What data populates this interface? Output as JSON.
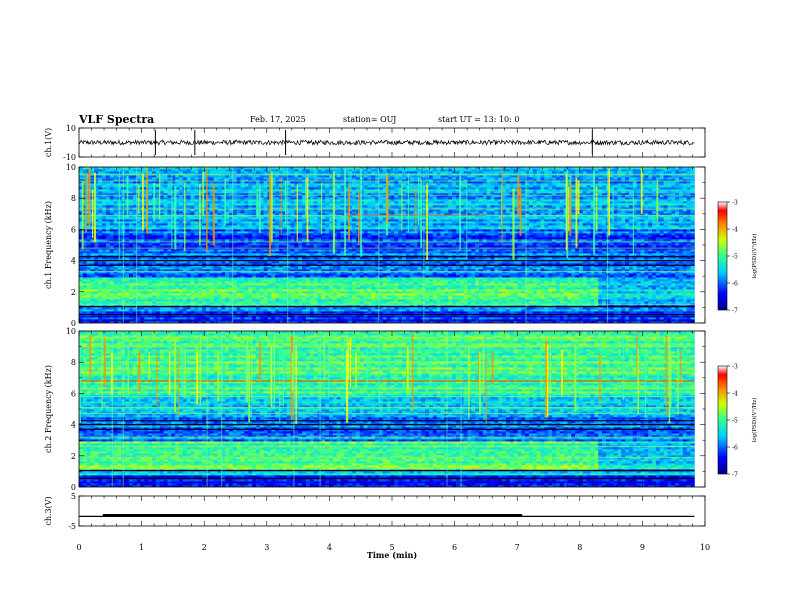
{
  "header": {
    "title": "VLF Spectra",
    "date": "Feb. 17, 2025",
    "station": "station= OUJ",
    "start": "start  UT  =   13: 10: 0"
  },
  "chart_data": [
    {
      "type": "line",
      "panel": "ch1-waveform",
      "ylabel": "ch.1(V)",
      "ylim": [
        -10,
        10
      ],
      "yticks": [
        "10",
        "-10"
      ],
      "xlim": [
        0,
        10
      ],
      "trace_color": "#000000",
      "series": [
        {
          "x": [
            0,
            9.83
          ],
          "y": [
            0,
            0
          ]
        }
      ]
    },
    {
      "type": "heatmap",
      "panel": "ch1-spectrogram",
      "ylabel": "ch.1 Frequency (kHz)",
      "ylim": [
        0,
        10
      ],
      "yticks": [
        "0",
        "2",
        "4",
        "6",
        "8",
        "10"
      ],
      "xlim": [
        0,
        10
      ],
      "data_extent_x": [
        0,
        9.83
      ],
      "colorbar": {
        "label": "log(PSD)(V²/Hz)",
        "range": [
          -7,
          -3
        ],
        "ticks": [
          "-3",
          "-4",
          "-5",
          "-6",
          "-7"
        ]
      }
    },
    {
      "type": "heatmap",
      "panel": "ch2-spectrogram",
      "ylabel": "ch.2 Frequency (kHz)",
      "ylim": [
        0,
        10
      ],
      "yticks": [
        "0",
        "2",
        "4",
        "6",
        "8",
        "10"
      ],
      "xlim": [
        0,
        10
      ],
      "data_extent_x": [
        0,
        9.83
      ],
      "colorbar": {
        "label": "log(PSD)(V²/Hz)",
        "range": [
          -7,
          -3
        ],
        "ticks": [
          "-3",
          "-4",
          "-5",
          "-6",
          "-7"
        ]
      }
    },
    {
      "type": "line",
      "panel": "ch3-voltage",
      "ylabel": "ch.3(V)",
      "ylim": [
        -5,
        5
      ],
      "yticks": [
        "5",
        "-5"
      ],
      "xlim": [
        0,
        10
      ],
      "xlabel": "Time  (min)",
      "xticks": [
        "0",
        "1",
        "2",
        "3",
        "4",
        "5",
        "6",
        "7",
        "8",
        "9",
        "10"
      ],
      "series": [
        {
          "name": "",
          "x": [
            0,
            9.83
          ],
          "y": [
            -1.8,
            -1.8
          ]
        },
        {
          "name": "",
          "x": [
            0.38,
            7.08
          ],
          "y": [
            -1.5,
            -1.5
          ]
        }
      ]
    }
  ]
}
